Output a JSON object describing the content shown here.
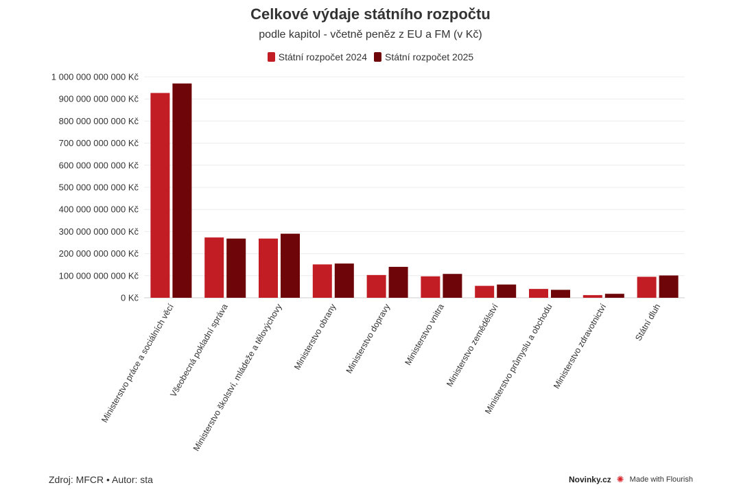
{
  "chart_data": {
    "type": "bar",
    "title": "Celkové výdaje státního rozpočtu",
    "subtitle": "podle kapitol - včetně peněz z EU a FM (v Kč)",
    "categories": [
      "Ministerstvo práce a sociálních věcí",
      "Všeobecná pokladní správa",
      "Ministerstvo školství, mládeže a tělovýchovy",
      "Ministerstvo obrany",
      "Ministerstvo dopravy",
      "Ministerstvo vnitra",
      "Ministerstvo zemědělství",
      "Ministerstvo průmyslu a obchodu",
      "Ministerstvo zdravotnictví",
      "Státní dluh"
    ],
    "series": [
      {
        "name": "Státní rozpočet 2024",
        "color": "#c21d24",
        "values": [
          927000000000,
          273000000000,
          268000000000,
          151000000000,
          103000000000,
          97000000000,
          54000000000,
          40000000000,
          12000000000,
          95000000000
        ]
      },
      {
        "name": "Státní rozpočet 2025",
        "color": "#6e0609",
        "values": [
          970000000000,
          268000000000,
          290000000000,
          155000000000,
          140000000000,
          108000000000,
          60000000000,
          36000000000,
          18000000000,
          101000000000
        ]
      }
    ],
    "ylim": [
      0,
      1000000000000
    ],
    "yticks": [
      "0 Kč",
      "100 000 000 000 Kč",
      "200 000 000 000 Kč",
      "300 000 000 000 Kč",
      "400 000 000 000 Kč",
      "500 000 000 000 Kč",
      "600 000 000 000 Kč",
      "700 000 000 000 Kč",
      "800 000 000 000 Kč",
      "900 000 000 000 Kč",
      "1 000 000 000 000 Kč"
    ],
    "grid": true,
    "legend_position": "top-center"
  },
  "footer": {
    "source": "Zdroj: MFCR • Autor: sta",
    "brand": "Novinky.cz",
    "credit": "Made with Flourish"
  }
}
